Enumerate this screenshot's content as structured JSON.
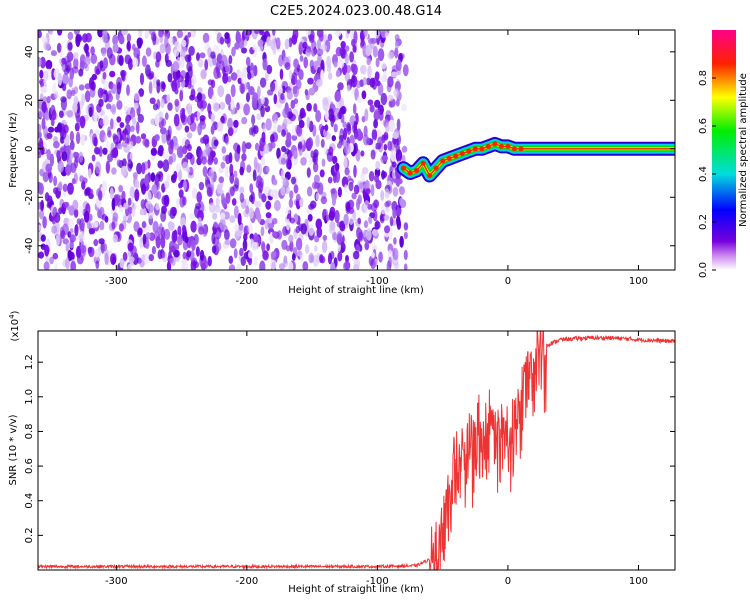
{
  "title": "C2E5.2024.023.00.48.G14",
  "chart_data": [
    {
      "type": "heatmap",
      "xlabel": "Height of straight line (km)",
      "ylabel": "Frequency (Hz)",
      "xlim": [
        -360,
        128
      ],
      "ylim": [
        -50,
        49
      ],
      "x_ticks": [
        -300,
        -200,
        -100,
        0,
        100
      ],
      "y_ticks": [
        -40,
        -20,
        0,
        20,
        40
      ],
      "noise_region_x": [
        -360,
        -78
      ],
      "signal_track": {
        "x": [
          -80,
          -75,
          -70,
          -65,
          -60,
          -55,
          -50,
          -45,
          -40,
          -35,
          -30,
          -25,
          -20,
          -15,
          -10,
          -5,
          0,
          5,
          10,
          20,
          40,
          60,
          80,
          100,
          128
        ],
        "y": [
          -8,
          -10,
          -9,
          -6,
          -11,
          -8,
          -5,
          -4,
          -3,
          -2,
          -1,
          0,
          0,
          1,
          2,
          1,
          1,
          0,
          0,
          0,
          0,
          0,
          0,
          0,
          0
        ]
      },
      "colorbar": {
        "label": "Normalized spectral amplitude",
        "range": [
          0,
          1
        ],
        "ticks": [
          "0.0",
          "0.2",
          "0.4",
          "0.6",
          "0.8"
        ]
      },
      "grid": false
    },
    {
      "type": "line",
      "xlabel": "Height of straight line (km)",
      "ylabel": "SNR (10 * v/v)",
      "y_multiplier": "(x10^4)",
      "xlim": [
        -360,
        128
      ],
      "ylim": [
        0,
        1.38
      ],
      "x_ticks": [
        -300,
        -200,
        -100,
        0,
        100
      ],
      "y_ticks": [
        "0.2",
        "0.4",
        "0.6",
        "0.8",
        "1.0",
        "1.2"
      ],
      "series_color": "#ee3333",
      "series": [
        {
          "x": [
            -360,
            -100,
            -70,
            -55,
            -50,
            -45,
            -40,
            -35,
            -30,
            -25,
            -20,
            -15,
            -10,
            -5,
            0,
            5,
            10,
            15,
            20,
            25,
            30,
            40,
            60,
            80,
            100,
            128
          ],
          "y": [
            0.02,
            0.02,
            0.025,
            0.08,
            0.25,
            0.5,
            0.65,
            0.75,
            0.72,
            0.78,
            0.8,
            0.85,
            0.85,
            0.82,
            0.75,
            0.88,
            1.02,
            1.15,
            1.22,
            1.27,
            1.3,
            1.33,
            1.34,
            1.34,
            1.33,
            1.32
          ]
        }
      ],
      "grid": false
    }
  ]
}
